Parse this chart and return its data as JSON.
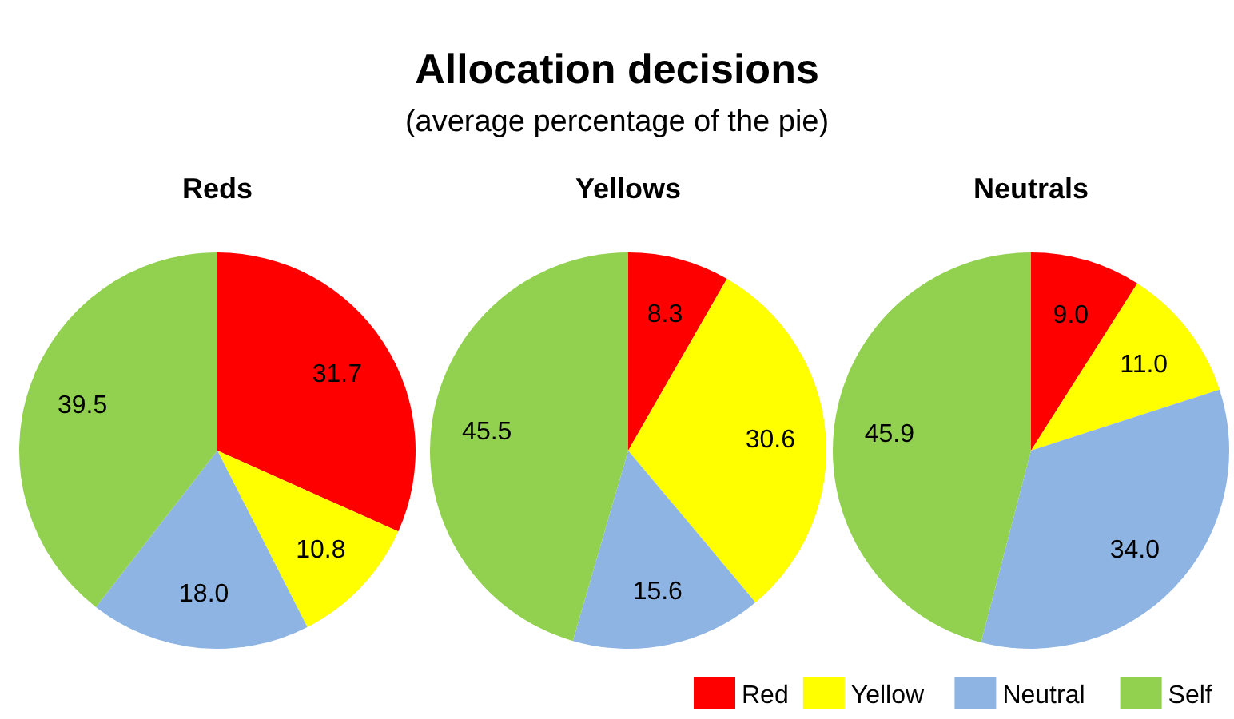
{
  "chart_data": [
    {
      "type": "other",
      "title": "Allocation decisions",
      "subtitle": "(average percentage of the pie)"
    },
    {
      "type": "pie",
      "title": "Reds",
      "values": [
        31.7,
        10.8,
        18.0,
        39.5
      ],
      "value_labels": [
        "31.7",
        "10.8",
        "18.0",
        "39.5"
      ],
      "colors": [
        "#ff0000",
        "#ffff00",
        "#8eb4e3",
        "#92d050"
      ]
    },
    {
      "type": "pie",
      "title": "Yellows",
      "values": [
        8.3,
        30.6,
        15.6,
        45.5
      ],
      "value_labels": [
        "8.3",
        "30.6",
        "15.6",
        "45.5"
      ],
      "colors": [
        "#ff0000",
        "#ffff00",
        "#8eb4e3",
        "#92d050"
      ]
    },
    {
      "type": "pie",
      "title": "Neutrals",
      "categories": [
        "Red",
        "Yellow",
        "Neutral",
        "Self"
      ],
      "values": [
        9.0,
        11.0,
        34.0,
        45.9
      ],
      "value_labels": [
        "9.0",
        "11.0",
        "34.0",
        "45.9"
      ],
      "colors": [
        "#ff0000",
        "#ffff00",
        "#8eb4e3",
        "#92d050"
      ],
      "legend": "bottom"
    }
  ]
}
